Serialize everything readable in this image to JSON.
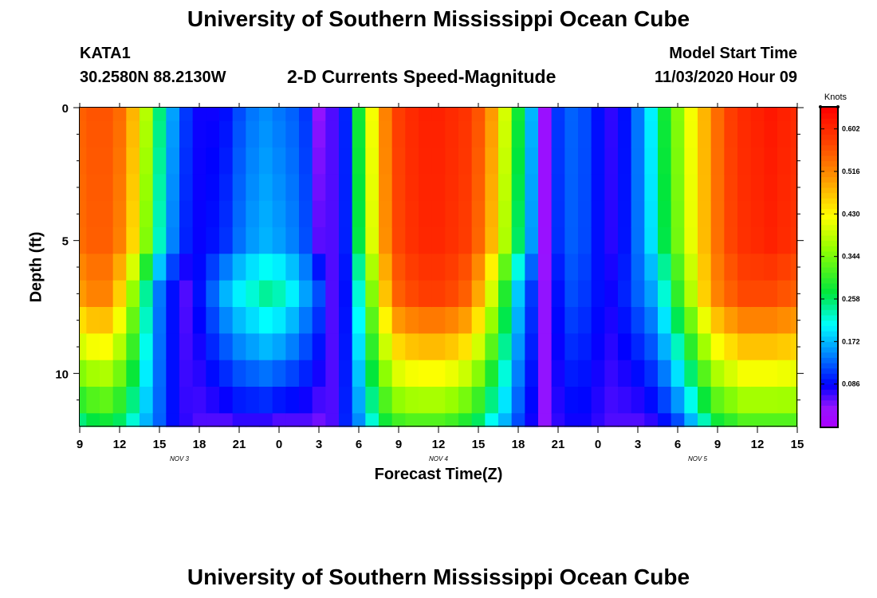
{
  "page": {
    "title_top": "University of Southern Mississippi Ocean Cube",
    "title_bottom": "University of Southern Mississippi Ocean Cube",
    "station": "KATA1",
    "coords": "30.2580N 88.2130W",
    "subtitle": "2-D Currents Speed-Magnitude",
    "start_label": "Model Start Time",
    "start_value": "11/03/2020 Hour 09"
  },
  "chart_data": {
    "type": "heatmap",
    "title": "2-D Currents Speed-Magnitude",
    "xlabel": "Forecast Time(Z)",
    "ylabel": "Depth (ft)",
    "x_range_hours": [
      0,
      54
    ],
    "y_range_ft": [
      0,
      12
    ],
    "x_ticks": [
      {
        "h": 0,
        "label": "9"
      },
      {
        "h": 3,
        "label": "12"
      },
      {
        "h": 6,
        "label": "15"
      },
      {
        "h": 9,
        "label": "18"
      },
      {
        "h": 12,
        "label": "21"
      },
      {
        "h": 15,
        "label": "0"
      },
      {
        "h": 18,
        "label": "3"
      },
      {
        "h": 21,
        "label": "6"
      },
      {
        "h": 24,
        "label": "9"
      },
      {
        "h": 27,
        "label": "12"
      },
      {
        "h": 30,
        "label": "15"
      },
      {
        "h": 33,
        "label": "18"
      },
      {
        "h": 36,
        "label": "21"
      },
      {
        "h": 39,
        "label": "0"
      },
      {
        "h": 42,
        "label": "3"
      },
      {
        "h": 45,
        "label": "6"
      },
      {
        "h": 48,
        "label": "9"
      },
      {
        "h": 51,
        "label": "12"
      },
      {
        "h": 54,
        "label": "15"
      }
    ],
    "date_labels": [
      {
        "h": 7.5,
        "label": "NOV 3"
      },
      {
        "h": 27,
        "label": "NOV 4"
      },
      {
        "h": 46.5,
        "label": "NOV 5"
      }
    ],
    "y_ticks": [
      {
        "ft": 0,
        "label": "0"
      },
      {
        "ft": 5,
        "label": "5"
      },
      {
        "ft": 10,
        "label": "10"
      }
    ],
    "y_minor_ticks_ft": [
      1,
      2,
      3,
      4,
      6,
      7,
      8,
      9,
      11
    ],
    "colorbar": {
      "unit": "Knots",
      "min": 0.0,
      "max": 0.645,
      "ticks": [
        "0.086",
        "0.172",
        "0.258",
        "0.344",
        "0.430",
        "0.516",
        "0.602"
      ]
    },
    "depth_levels_ft": [
      0,
      1,
      2,
      3,
      4,
      5,
      6,
      7,
      8,
      9,
      10,
      11,
      12
    ],
    "times_hours": [
      0,
      1,
      2,
      3,
      4,
      5,
      6,
      7,
      8,
      9,
      10,
      11,
      12,
      13,
      14,
      15,
      16,
      17,
      18,
      19,
      20,
      21,
      22,
      23,
      24,
      25,
      26,
      27,
      28,
      29,
      30,
      31,
      32,
      33,
      34,
      35,
      36,
      37,
      38,
      39,
      40,
      41,
      42,
      43,
      44,
      45,
      46,
      47,
      48,
      49,
      50,
      51,
      52,
      53,
      54
    ],
    "surface_speed_knots": [
      0.55,
      0.56,
      0.56,
      0.54,
      0.48,
      0.38,
      0.25,
      0.16,
      0.11,
      0.08,
      0.08,
      0.09,
      0.12,
      0.14,
      0.15,
      0.14,
      0.13,
      0.11,
      0.04,
      0.06,
      0.1,
      0.28,
      0.42,
      0.52,
      0.58,
      0.6,
      0.61,
      0.61,
      0.6,
      0.59,
      0.56,
      0.5,
      0.4,
      0.28,
      0.17,
      0.03,
      0.11,
      0.13,
      0.12,
      0.09,
      0.07,
      0.09,
      0.14,
      0.2,
      0.28,
      0.35,
      0.42,
      0.48,
      0.54,
      0.58,
      0.6,
      0.61,
      0.62,
      0.61,
      0.6
    ],
    "speed_knots_at_7ft": [
      0.5,
      0.52,
      0.52,
      0.46,
      0.36,
      0.24,
      0.14,
      0.09,
      0.06,
      0.09,
      0.13,
      0.17,
      0.2,
      0.22,
      0.24,
      0.23,
      0.2,
      0.16,
      0.12,
      0.06,
      0.09,
      0.22,
      0.35,
      0.47,
      0.55,
      0.57,
      0.58,
      0.58,
      0.57,
      0.55,
      0.49,
      0.4,
      0.29,
      0.18,
      0.11,
      0.04,
      0.09,
      0.12,
      0.11,
      0.09,
      0.08,
      0.1,
      0.13,
      0.16,
      0.22,
      0.3,
      0.38,
      0.46,
      0.52,
      0.55,
      0.57,
      0.57,
      0.57,
      0.56,
      0.55
    ],
    "speed_knots_at_12ft": [
      0.25,
      0.27,
      0.28,
      0.26,
      0.22,
      0.17,
      0.13,
      0.09,
      0.07,
      0.06,
      0.06,
      0.06,
      0.07,
      0.07,
      0.07,
      0.06,
      0.06,
      0.06,
      0.05,
      0.06,
      0.1,
      0.15,
      0.22,
      0.28,
      0.31,
      0.32,
      0.32,
      0.32,
      0.31,
      0.29,
      0.26,
      0.21,
      0.17,
      0.12,
      0.08,
      0.04,
      0.07,
      0.08,
      0.08,
      0.07,
      0.06,
      0.06,
      0.06,
      0.07,
      0.09,
      0.12,
      0.17,
      0.23,
      0.28,
      0.3,
      0.32,
      0.32,
      0.32,
      0.32,
      0.32
    ]
  }
}
